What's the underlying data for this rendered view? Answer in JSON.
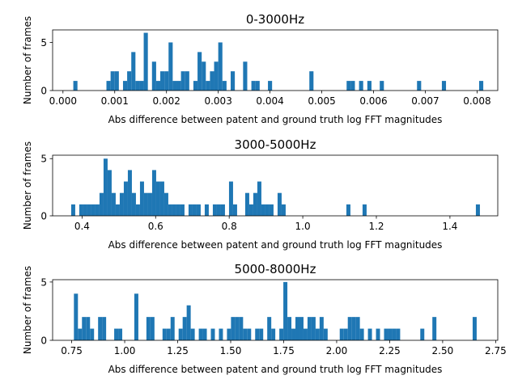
{
  "colors": {
    "bar": "#1f77b4",
    "axis": "#000000",
    "background": "#ffffff"
  },
  "chart_data": [
    {
      "type": "bar",
      "title": "0-3000Hz",
      "xlabel": "Abs difference between patent and ground truth log FFT magnitudes",
      "ylabel": "Number of frames",
      "xlim": [
        -0.0002,
        0.0084
      ],
      "ylim": [
        0,
        6.3
      ],
      "x_ticks": [
        0.0,
        0.001,
        0.002,
        0.003,
        0.004,
        0.005,
        0.006,
        0.007,
        0.008
      ],
      "x_tick_labels": [
        "0.000",
        "0.001",
        "0.002",
        "0.003",
        "0.004",
        "0.005",
        "0.006",
        "0.007",
        "0.008"
      ],
      "y_ticks": [
        0,
        5
      ],
      "y_tick_labels": [
        "0",
        "5"
      ],
      "bin_width": 8e-05,
      "bin_centers": [
        0.00024,
        0.00088,
        0.00096,
        0.00104,
        0.0012,
        0.00128,
        0.00136,
        0.00144,
        0.00152,
        0.0016,
        0.00176,
        0.00184,
        0.00192,
        0.002,
        0.00208,
        0.00216,
        0.00224,
        0.00232,
        0.0024,
        0.00256,
        0.00264,
        0.00272,
        0.0028,
        0.00288,
        0.00296,
        0.00304,
        0.00312,
        0.00328,
        0.00352,
        0.00368,
        0.00376,
        0.004,
        0.0048,
        0.00552,
        0.0056,
        0.00576,
        0.00592,
        0.00616,
        0.00688,
        0.00736,
        0.00808
      ],
      "values": [
        1,
        1,
        2,
        2,
        1,
        2,
        4,
        1,
        1,
        6,
        3,
        1,
        2,
        2,
        5,
        1,
        1,
        2,
        2,
        1,
        4,
        3,
        1,
        2,
        3,
        5,
        1,
        2,
        3,
        1,
        1,
        1,
        2,
        1,
        1,
        1,
        1,
        1,
        1,
        1,
        1
      ]
    },
    {
      "type": "bar",
      "title": "3000-5000Hz",
      "xlabel": "Abs difference between patent and ground truth log FFT magnitudes",
      "ylabel": "Number of frames",
      "xlim": [
        0.32,
        1.53
      ],
      "ylim": [
        0,
        5.3
      ],
      "x_ticks": [
        0.4,
        0.6,
        0.8,
        1.0,
        1.2,
        1.4
      ],
      "x_tick_labels": [
        "0.4",
        "0.6",
        "0.8",
        "1.0",
        "1.2",
        "1.4"
      ],
      "y_ticks": [
        0,
        5
      ],
      "y_tick_labels": [
        "0",
        "5"
      ],
      "bin_width": 0.011,
      "bin_centers": [
        0.376,
        0.398,
        0.409,
        0.42,
        0.431,
        0.442,
        0.453,
        0.464,
        0.475,
        0.486,
        0.497,
        0.508,
        0.519,
        0.53,
        0.541,
        0.552,
        0.563,
        0.574,
        0.585,
        0.596,
        0.607,
        0.618,
        0.629,
        0.64,
        0.651,
        0.662,
        0.673,
        0.695,
        0.706,
        0.717,
        0.739,
        0.761,
        0.772,
        0.783,
        0.805,
        0.816,
        0.849,
        0.86,
        0.871,
        0.882,
        0.893,
        0.904,
        0.915,
        0.937,
        0.948,
        1.124,
        1.168,
        1.476
      ],
      "values": [
        1,
        1,
        1,
        1,
        1,
        1,
        2,
        5,
        4,
        2,
        1,
        2,
        3,
        4,
        2,
        1,
        3,
        2,
        2,
        4,
        3,
        3,
        2,
        1,
        1,
        1,
        1,
        1,
        1,
        1,
        1,
        1,
        1,
        1,
        3,
        1,
        2,
        1,
        2,
        3,
        1,
        1,
        1,
        2,
        1,
        1,
        1,
        1
      ]
    },
    {
      "type": "bar",
      "title": "5000-8000Hz",
      "xlabel": "Abs difference between patent and ground truth log FFT magnitudes",
      "ylabel": "Number of frames",
      "xlim": [
        0.66,
        2.76
      ],
      "ylim": [
        0,
        5.2
      ],
      "x_ticks": [
        0.75,
        1.0,
        1.25,
        1.5,
        1.75,
        2.0,
        2.25,
        2.5,
        2.75
      ],
      "x_tick_labels": [
        "0.75",
        "1.00",
        "1.25",
        "1.50",
        "1.75",
        "2.00",
        "2.25",
        "2.50",
        "2.75"
      ],
      "y_ticks": [
        0,
        5
      ],
      "y_tick_labels": [
        "0",
        "5"
      ],
      "bin_width": 0.019,
      "bin_centers": [
        0.77,
        0.789,
        0.808,
        0.827,
        0.846,
        0.884,
        0.903,
        0.96,
        0.979,
        1.055,
        1.112,
        1.131,
        1.188,
        1.207,
        1.226,
        1.264,
        1.283,
        1.302,
        1.321,
        1.359,
        1.378,
        1.416,
        1.454,
        1.492,
        1.511,
        1.53,
        1.549,
        1.568,
        1.587,
        1.625,
        1.644,
        1.682,
        1.701,
        1.739,
        1.758,
        1.777,
        1.796,
        1.815,
        1.834,
        1.853,
        1.872,
        1.891,
        1.91,
        1.929,
        1.948,
        2.024,
        2.043,
        2.062,
        2.081,
        2.1,
        2.119,
        2.157,
        2.195,
        2.233,
        2.252,
        2.271,
        2.29,
        2.404,
        2.461,
        2.651
      ],
      "values": [
        4,
        1,
        2,
        2,
        1,
        2,
        2,
        1,
        1,
        4,
        2,
        2,
        1,
        1,
        2,
        1,
        2,
        3,
        1,
        1,
        1,
        1,
        1,
        1,
        2,
        2,
        2,
        1,
        1,
        1,
        1,
        2,
        1,
        1,
        5,
        2,
        1,
        2,
        2,
        1,
        2,
        2,
        1,
        2,
        1,
        1,
        1,
        2,
        2,
        2,
        1,
        1,
        1,
        1,
        1,
        1,
        1,
        1,
        2,
        2
      ]
    }
  ]
}
